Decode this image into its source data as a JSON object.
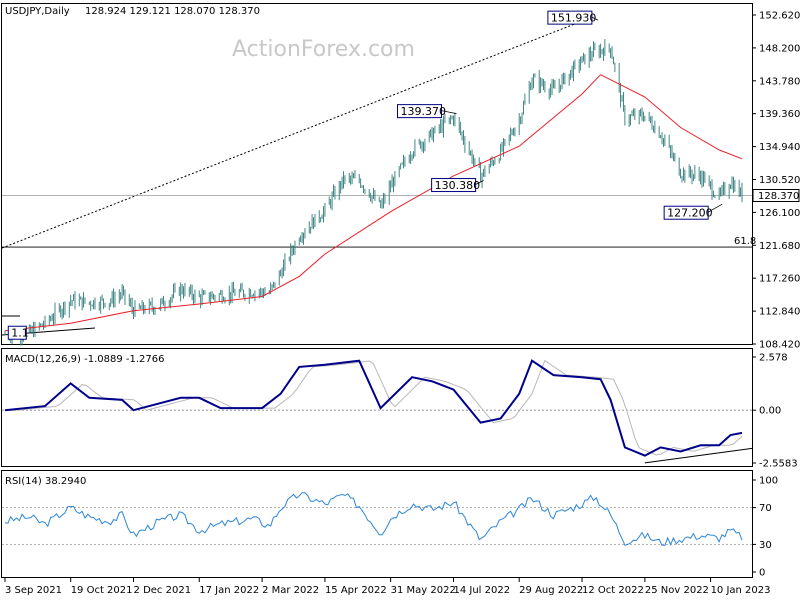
{
  "chart_data": {
    "type": "candlestick",
    "symbol": "USDJPY,Daily",
    "ohlc_readout": "128.924 129.121 128.070 128.370",
    "watermark": "ActionForex.com",
    "price_axis": {
      "range": [
        108.42,
        152.62
      ],
      "ticks": [
        "152.620",
        "148.200",
        "143.780",
        "139.360",
        "134.940",
        "130.520",
        "126.100",
        "121.680",
        "117.260",
        "112.840",
        "108.420"
      ]
    },
    "last_price": "128.370",
    "annotations": [
      {
        "label": "151.930",
        "price": 151.93,
        "date": "2022-10-21"
      },
      {
        "label": "139.370",
        "price": 139.37,
        "date": "2022-07-14"
      },
      {
        "label": "130.380",
        "price": 130.38,
        "date": "2022-08-02"
      },
      {
        "label": "127.200",
        "price": 127.2,
        "date": "2023-01-16"
      },
      {
        "label": "1.1",
        "price": 110.0,
        "date": "2021-09-06"
      }
    ],
    "fib_level": {
      "label": "61.8",
      "price": 121.44
    },
    "x_axis": {
      "ticks": [
        "3 Sep 2021",
        "19 Oct 2021",
        "2 Dec 2021",
        "17 Jan 2022",
        "2 Mar 2022",
        "15 Apr 2022",
        "31 May 2022",
        "14 Jul 2022",
        "29 Aug 2022",
        "12 Oct 2022",
        "25 Nov 2022",
        "10 Jan 2023"
      ]
    },
    "price_series": [
      {
        "date": "2021-09-03",
        "close": 109.7
      },
      {
        "date": "2021-09-20",
        "close": 109.9
      },
      {
        "date": "2021-10-01",
        "close": 111.2
      },
      {
        "date": "2021-10-19",
        "close": 114.3
      },
      {
        "date": "2021-11-01",
        "close": 114.0
      },
      {
        "date": "2021-11-15",
        "close": 114.2
      },
      {
        "date": "2021-11-24",
        "close": 115.2
      },
      {
        "date": "2021-12-02",
        "close": 112.9
      },
      {
        "date": "2021-12-20",
        "close": 113.6
      },
      {
        "date": "2022-01-04",
        "close": 115.8
      },
      {
        "date": "2022-01-17",
        "close": 114.6
      },
      {
        "date": "2022-02-01",
        "close": 115.0
      },
      {
        "date": "2022-02-24",
        "close": 115.5
      },
      {
        "date": "2022-03-07",
        "close": 115.3
      },
      {
        "date": "2022-03-15",
        "close": 118.0
      },
      {
        "date": "2022-03-28",
        "close": 123.0
      },
      {
        "date": "2022-04-15",
        "close": 126.4
      },
      {
        "date": "2022-04-28",
        "close": 130.5
      },
      {
        "date": "2022-05-09",
        "close": 130.4
      },
      {
        "date": "2022-05-24",
        "close": 126.8
      },
      {
        "date": "2022-06-01",
        "close": 130.0
      },
      {
        "date": "2022-06-15",
        "close": 134.5
      },
      {
        "date": "2022-06-29",
        "close": 136.6
      },
      {
        "date": "2022-07-14",
        "close": 138.9
      },
      {
        "date": "2022-08-02",
        "close": 131.0
      },
      {
        "date": "2022-08-16",
        "close": 134.2
      },
      {
        "date": "2022-08-29",
        "close": 138.6
      },
      {
        "date": "2022-09-07",
        "close": 144.0
      },
      {
        "date": "2022-09-22",
        "close": 142.5
      },
      {
        "date": "2022-10-12",
        "close": 146.5
      },
      {
        "date": "2022-10-21",
        "close": 147.7
      },
      {
        "date": "2022-11-01",
        "close": 148.2
      },
      {
        "date": "2022-11-11",
        "close": 138.8
      },
      {
        "date": "2022-11-25",
        "close": 139.1
      },
      {
        "date": "2022-12-06",
        "close": 136.6
      },
      {
        "date": "2022-12-20",
        "close": 131.5
      },
      {
        "date": "2023-01-03",
        "close": 131.0
      },
      {
        "date": "2023-01-16",
        "close": 128.1
      },
      {
        "date": "2023-01-24",
        "close": 130.2
      },
      {
        "date": "2023-02-01",
        "close": 128.4
      }
    ],
    "moving_average": [
      {
        "date": "2021-09-03",
        "value": 110.2
      },
      {
        "date": "2021-10-19",
        "value": 111.2
      },
      {
        "date": "2021-12-02",
        "value": 112.9
      },
      {
        "date": "2022-01-17",
        "value": 113.8
      },
      {
        "date": "2022-03-02",
        "value": 114.8
      },
      {
        "date": "2022-03-28",
        "value": 117.5
      },
      {
        "date": "2022-04-15",
        "value": 120.5
      },
      {
        "date": "2022-05-31",
        "value": 126.2
      },
      {
        "date": "2022-07-14",
        "value": 131.0
      },
      {
        "date": "2022-08-29",
        "value": 135.0
      },
      {
        "date": "2022-10-12",
        "value": 142.0
      },
      {
        "date": "2022-10-25",
        "value": 144.6
      },
      {
        "date": "2022-11-25",
        "value": 141.6
      },
      {
        "date": "2022-12-20",
        "value": 137.5
      },
      {
        "date": "2023-01-16",
        "value": 134.5
      },
      {
        "date": "2023-02-01",
        "value": 133.3
      }
    ],
    "macd": {
      "label": "MACD(12,26,9) -1.0889 -1.2766",
      "range": [
        -2.5583,
        2.578
      ],
      "ticks": [
        "2.578",
        "0.00",
        "-2.5583"
      ],
      "line": [
        {
          "date": "2021-09-03",
          "value": 0.0
        },
        {
          "date": "2021-10-01",
          "value": 0.2
        },
        {
          "date": "2021-10-19",
          "value": 1.3
        },
        {
          "date": "2021-11-01",
          "value": 0.6
        },
        {
          "date": "2021-11-24",
          "value": 0.5
        },
        {
          "date": "2021-12-02",
          "value": 0.0
        },
        {
          "date": "2022-01-04",
          "value": 0.6
        },
        {
          "date": "2022-01-17",
          "value": 0.6
        },
        {
          "date": "2022-02-01",
          "value": 0.1
        },
        {
          "date": "2022-03-02",
          "value": 0.1
        },
        {
          "date": "2022-03-15",
          "value": 0.8
        },
        {
          "date": "2022-03-28",
          "value": 2.1
        },
        {
          "date": "2022-04-15",
          "value": 2.2
        },
        {
          "date": "2022-05-09",
          "value": 2.4
        },
        {
          "date": "2022-05-24",
          "value": 0.1
        },
        {
          "date": "2022-06-15",
          "value": 1.6
        },
        {
          "date": "2022-06-29",
          "value": 1.4
        },
        {
          "date": "2022-07-14",
          "value": 1.0
        },
        {
          "date": "2022-08-02",
          "value": -0.6
        },
        {
          "date": "2022-08-16",
          "value": -0.4
        },
        {
          "date": "2022-08-29",
          "value": 0.8
        },
        {
          "date": "2022-09-07",
          "value": 2.4
        },
        {
          "date": "2022-09-22",
          "value": 1.7
        },
        {
          "date": "2022-10-12",
          "value": 1.6
        },
        {
          "date": "2022-10-25",
          "value": 1.5
        },
        {
          "date": "2022-11-01",
          "value": 0.5
        },
        {
          "date": "2022-11-11",
          "value": -1.8
        },
        {
          "date": "2022-11-25",
          "value": -2.2
        },
        {
          "date": "2022-12-06",
          "value": -1.8
        },
        {
          "date": "2022-12-20",
          "value": -2.0
        },
        {
          "date": "2023-01-03",
          "value": -1.7
        },
        {
          "date": "2023-01-16",
          "value": -1.7
        },
        {
          "date": "2023-01-24",
          "value": -1.2
        },
        {
          "date": "2023-02-01",
          "value": -1.1
        }
      ],
      "trendline": [
        {
          "date": "2022-11-25",
          "value": -2.55
        },
        {
          "date": "2023-02-01",
          "value": -1.85
        }
      ]
    },
    "rsi": {
      "label": "RSI(14) 38.2940",
      "range": [
        0,
        100
      ],
      "ticks": [
        "100",
        "70",
        "30",
        "0"
      ],
      "levels": [
        70,
        30
      ],
      "line": [
        {
          "date": "2021-09-03",
          "value": 55
        },
        {
          "date": "2021-09-20",
          "value": 60
        },
        {
          "date": "2021-10-01",
          "value": 52
        },
        {
          "date": "2021-10-19",
          "value": 70
        },
        {
          "date": "2021-11-01",
          "value": 60
        },
        {
          "date": "2021-11-15",
          "value": 55
        },
        {
          "date": "2021-11-24",
          "value": 62
        },
        {
          "date": "2021-12-02",
          "value": 40
        },
        {
          "date": "2021-12-20",
          "value": 55
        },
        {
          "date": "2022-01-04",
          "value": 62
        },
        {
          "date": "2022-01-17",
          "value": 45
        },
        {
          "date": "2022-02-01",
          "value": 52
        },
        {
          "date": "2022-02-24",
          "value": 58
        },
        {
          "date": "2022-03-07",
          "value": 50
        },
        {
          "date": "2022-03-15",
          "value": 70
        },
        {
          "date": "2022-03-28",
          "value": 85
        },
        {
          "date": "2022-04-15",
          "value": 74
        },
        {
          "date": "2022-04-28",
          "value": 84
        },
        {
          "date": "2022-05-09",
          "value": 72
        },
        {
          "date": "2022-05-24",
          "value": 42
        },
        {
          "date": "2022-06-01",
          "value": 60
        },
        {
          "date": "2022-06-15",
          "value": 74
        },
        {
          "date": "2022-06-29",
          "value": 68
        },
        {
          "date": "2022-07-14",
          "value": 76
        },
        {
          "date": "2022-08-02",
          "value": 35
        },
        {
          "date": "2022-08-16",
          "value": 55
        },
        {
          "date": "2022-08-29",
          "value": 68
        },
        {
          "date": "2022-09-07",
          "value": 80
        },
        {
          "date": "2022-09-22",
          "value": 62
        },
        {
          "date": "2022-10-12",
          "value": 74
        },
        {
          "date": "2022-10-21",
          "value": 82
        },
        {
          "date": "2022-11-01",
          "value": 62
        },
        {
          "date": "2022-11-11",
          "value": 33
        },
        {
          "date": "2022-11-25",
          "value": 40
        },
        {
          "date": "2022-12-06",
          "value": 32
        },
        {
          "date": "2022-12-20",
          "value": 36
        },
        {
          "date": "2023-01-03",
          "value": 40
        },
        {
          "date": "2023-01-16",
          "value": 37
        },
        {
          "date": "2023-01-24",
          "value": 45
        },
        {
          "date": "2023-02-01",
          "value": 38
        }
      ]
    },
    "colors": {
      "candles": "#2d7a78",
      "moving_average": "#e8202a",
      "macd_main": "#00008b",
      "macd_signal": "#b8b8b8",
      "rsi": "#2c86d8",
      "grid": "#000000"
    }
  }
}
